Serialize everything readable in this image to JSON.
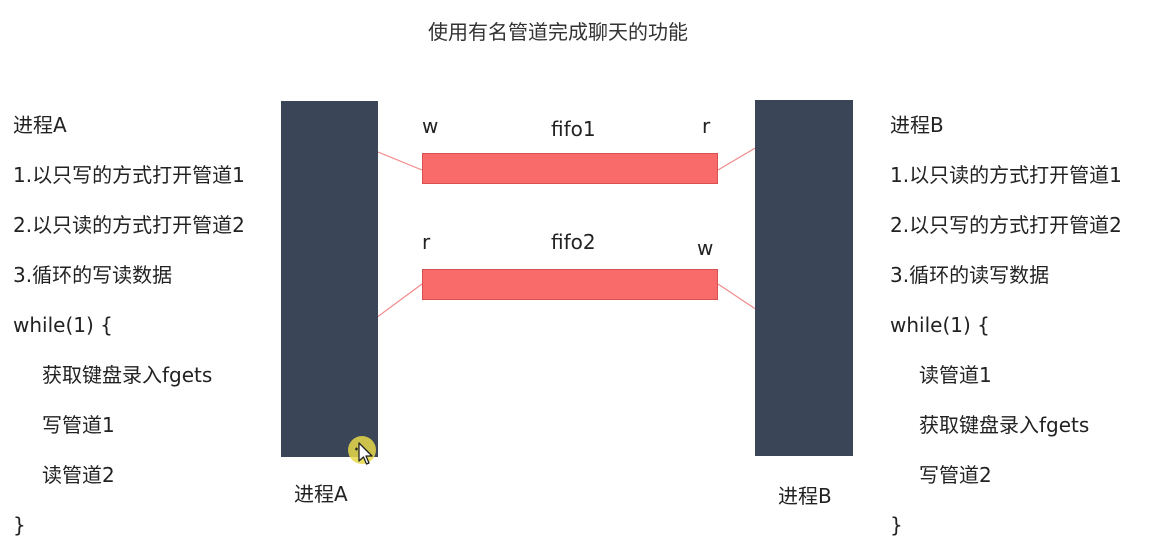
{
  "title": "使用有名管道完成聊天的功能",
  "process_a": {
    "heading": "进程A",
    "lines": [
      {
        "text": "1.以只写的方式打开管道1",
        "indent": false
      },
      {
        "text": "2.以只读的方式打开管道2",
        "indent": false
      },
      {
        "text": "3.循环的写读数据",
        "indent": false
      },
      {
        "text": "while(1) {",
        "indent": false
      },
      {
        "text": "获取键盘录入fgets",
        "indent": true
      },
      {
        "text": "写管道1",
        "indent": true
      },
      {
        "text": "读管道2",
        "indent": true
      },
      {
        "text": "}",
        "indent": false
      }
    ],
    "block_label": "进程A"
  },
  "process_b": {
    "heading": "进程B",
    "lines": [
      {
        "text": "1.以只读的方式打开管道1",
        "indent": false
      },
      {
        "text": "2.以只写的方式打开管道2",
        "indent": false
      },
      {
        "text": "3.循环的读写数据",
        "indent": false
      },
      {
        "text": "while(1) {",
        "indent": false
      },
      {
        "text": "读管道1",
        "indent": true
      },
      {
        "text": "获取键盘录入fgets",
        "indent": true
      },
      {
        "text": "写管道2",
        "indent": true
      },
      {
        "text": "}",
        "indent": false
      }
    ],
    "block_label": "进程B"
  },
  "fifo1": {
    "name": "fifo1",
    "left_end": "w",
    "right_end": "r"
  },
  "fifo2": {
    "name": "fifo2",
    "left_end": "r",
    "right_end": "w"
  },
  "colors": {
    "block": "#3b4558",
    "pipe": "#f96b6b",
    "connector": "#f08a8a"
  }
}
